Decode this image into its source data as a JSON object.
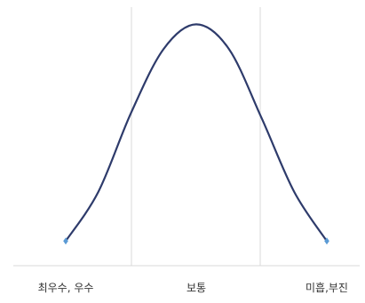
{
  "chart_data": {
    "type": "line",
    "title": "",
    "xlabel": "",
    "ylabel": "",
    "categories": [
      "최우수, 우수",
      "보통",
      "미흡,부진"
    ],
    "x_range": [
      0,
      2
    ],
    "series": [
      {
        "points": [
          {
            "x": 0.0,
            "y": 0.1
          },
          {
            "x": 0.25,
            "y": 0.3
          },
          {
            "x": 0.5,
            "y": 0.62
          },
          {
            "x": 0.75,
            "y": 0.88
          },
          {
            "x": 1.0,
            "y": 0.98
          },
          {
            "x": 1.25,
            "y": 0.88
          },
          {
            "x": 1.5,
            "y": 0.6
          },
          {
            "x": 1.75,
            "y": 0.3
          },
          {
            "x": 2.0,
            "y": 0.1
          }
        ],
        "color": "#2E3B6B",
        "marker_color": "#5B9BD5",
        "smooth": true
      }
    ],
    "ylim": [
      0,
      1.05
    ],
    "vertical_gridlines": true,
    "gridline_color": "#D9D9D9",
    "axis_color": "#D9D9D9"
  }
}
